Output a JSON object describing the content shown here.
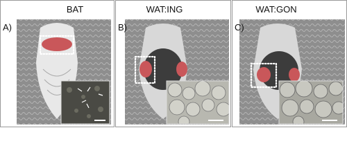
{
  "panels": [
    {
      "letter": "A)",
      "title": "BAT"
    },
    {
      "letter": "B)",
      "title": "WAT:ING"
    },
    {
      "letter": "C)",
      "title": "WAT:GON"
    }
  ]
}
